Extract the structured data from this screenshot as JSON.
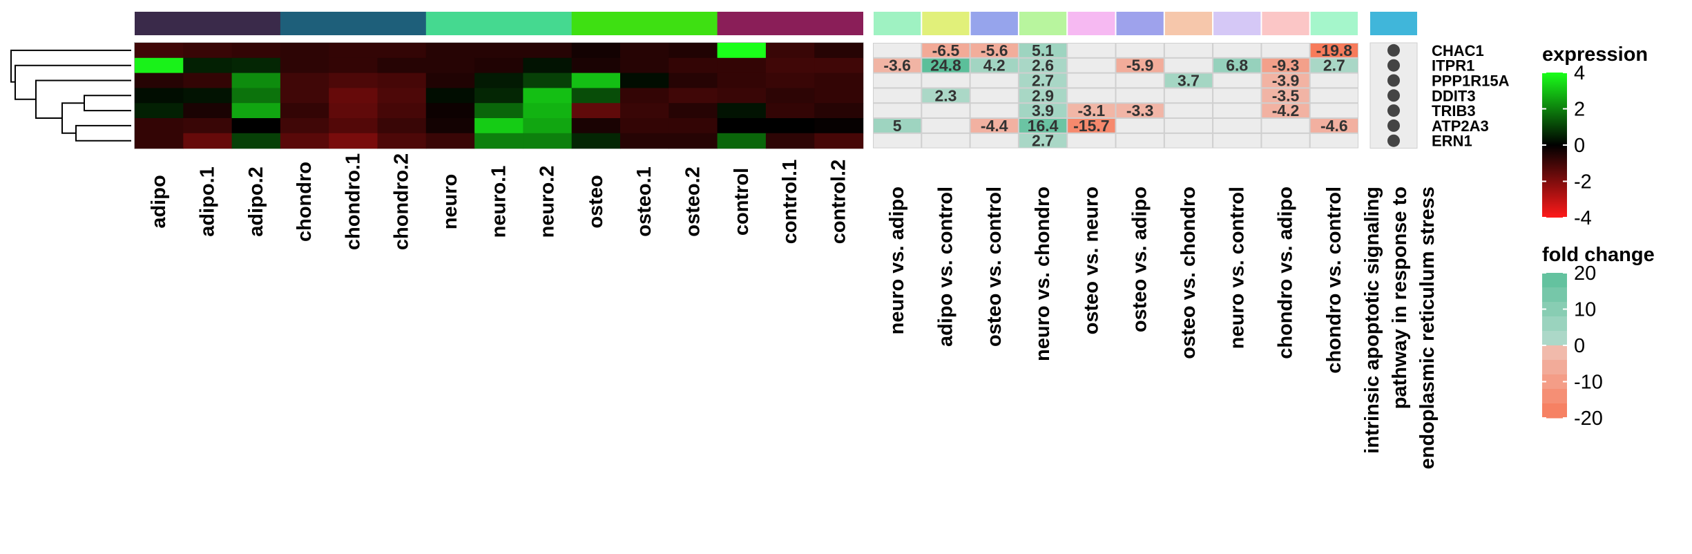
{
  "chart_data": {
    "type": "heatmap",
    "genes": [
      "CHAC1",
      "ITPR1",
      "PPP1R15A",
      "DDIT3",
      "TRIB3",
      "ATP2A3",
      "ERN1"
    ],
    "samples": [
      "adipo",
      "adipo.1",
      "adipo.2",
      "chondro",
      "chondro.1",
      "chondro.2",
      "neuro",
      "neuro.1",
      "neuro.2",
      "osteo",
      "osteo.1",
      "osteo.2",
      "control",
      "control.1",
      "control.2"
    ],
    "sample_groups": [
      {
        "color": "#3a2a4a",
        "span": 3
      },
      {
        "color": "#1e5f7a",
        "span": 3
      },
      {
        "color": "#45d990",
        "span": 3
      },
      {
        "color": "#3ee012",
        "span": 3
      },
      {
        "color": "#8a1e58",
        "span": 3
      }
    ],
    "expression": [
      [
        -1.0,
        -0.9,
        -0.8,
        -0.7,
        -0.8,
        -0.8,
        -0.6,
        -0.6,
        -0.6,
        -0.3,
        -0.6,
        -0.5,
        4.0,
        -0.9,
        -0.6
      ],
      [
        3.8,
        0.5,
        0.6,
        -0.7,
        -0.8,
        -0.6,
        -0.6,
        -0.5,
        0.3,
        -0.4,
        -0.6,
        -0.8,
        -0.8,
        -1.0,
        -1.0
      ],
      [
        -0.6,
        -0.8,
        2.2,
        -1.0,
        -1.2,
        -1.1,
        -0.5,
        0.4,
        1.0,
        3.0,
        0.2,
        -0.6,
        -0.8,
        -0.9,
        -0.8
      ],
      [
        0.2,
        0.3,
        1.8,
        -1.0,
        -1.6,
        -1.2,
        0.2,
        0.6,
        3.0,
        1.2,
        -0.8,
        -1.0,
        -0.9,
        -0.7,
        -0.8
      ],
      [
        0.5,
        -0.4,
        2.6,
        -0.8,
        -1.5,
        -1.1,
        -0.2,
        1.6,
        2.8,
        -1.5,
        -0.9,
        -0.6,
        0.3,
        -0.8,
        -0.6
      ],
      [
        -0.8,
        -0.9,
        0.0,
        -1.0,
        -1.3,
        -0.9,
        -0.3,
        3.2,
        2.6,
        -0.4,
        -0.8,
        -0.8,
        0.0,
        0.0,
        -0.1
      ],
      [
        -0.8,
        -1.6,
        1.0,
        -1.4,
        -1.9,
        -1.2,
        -0.9,
        2.0,
        2.0,
        0.6,
        -0.6,
        -0.6,
        1.6,
        -0.7,
        -1.1
      ]
    ],
    "comparisons": [
      "neuro vs. adipo",
      "adipo vs. control",
      "osteo vs. control",
      "neuro vs. chondro",
      "osteo vs. neuro",
      "osteo vs. adipo",
      "osteo vs. chondro",
      "neuro vs. control",
      "chondro vs. adipo",
      "chondro vs. control"
    ],
    "comparison_colors": [
      "#9ff2c2",
      "#e1f07a",
      "#96a4ec",
      "#b8f59e",
      "#f6b9f2",
      "#9ea2ec",
      "#f6c7ab",
      "#d5c8f6",
      "#fbc6c6",
      "#a5f6cb"
    ],
    "fold_change": [
      [
        null,
        -6.5,
        -5.6,
        5.1,
        null,
        null,
        null,
        null,
        null,
        -19.8
      ],
      [
        -3.6,
        24.8,
        4.2,
        2.6,
        null,
        -5.9,
        null,
        6.8,
        -9.3,
        2.7
      ],
      [
        null,
        null,
        null,
        2.7,
        null,
        null,
        3.7,
        null,
        -3.9,
        null
      ],
      [
        null,
        2.3,
        null,
        2.9,
        null,
        null,
        null,
        null,
        -3.5,
        null
      ],
      [
        null,
        null,
        null,
        3.9,
        -3.1,
        -3.3,
        null,
        null,
        -4.2,
        null
      ],
      [
        5,
        null,
        -4.4,
        16.4,
        -15.7,
        null,
        null,
        null,
        null,
        -4.6
      ],
      [
        null,
        null,
        null,
        2.7,
        null,
        null,
        null,
        null,
        null,
        null
      ]
    ],
    "pathway": {
      "color": "#40b6da",
      "label_lines": [
        "intrinsic apoptotic signaling",
        "pathway in response to",
        "endoplasmic reticulum stress"
      ],
      "members": [
        true,
        true,
        true,
        true,
        true,
        true,
        true
      ]
    },
    "legend_expression": {
      "title": "expression",
      "ticks": [
        4,
        2,
        0,
        -2,
        -4
      ],
      "colors": {
        "high": "#1aff1a",
        "mid": "#000000",
        "low": "#ff1a1a"
      }
    },
    "legend_fold_change": {
      "title": "fold change",
      "ticks": [
        20,
        10,
        0,
        -10,
        -20
      ],
      "colors": {
        "positive": "#5bbf9a",
        "neutral": "#ececec",
        "negative": "#f77a5a"
      }
    }
  }
}
